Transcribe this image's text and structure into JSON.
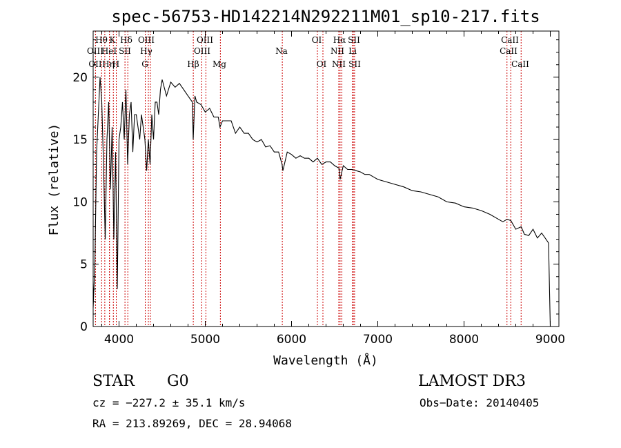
{
  "chart_data": {
    "type": "line",
    "title": "spec-56753-HD142214N292211M01_sp10-217.fits",
    "xlabel": "Wavelength (Å)",
    "ylabel": "Flux (relative)",
    "xlim": [
      3700,
      9100
    ],
    "ylim": [
      0,
      23.7
    ],
    "x_ticks": [
      4000,
      5000,
      6000,
      7000,
      8000,
      9000
    ],
    "x_tick_labels": [
      "4000",
      "5000",
      "6000",
      "7000",
      "8000",
      "9000"
    ],
    "y_ticks": [
      0,
      5,
      10,
      15,
      20
    ],
    "y_tick_labels": [
      "0",
      "5",
      "10",
      "15",
      "20"
    ],
    "grid": false,
    "series": [
      {
        "name": "spectrum",
        "x": [
          3700,
          3720,
          3740,
          3760,
          3780,
          3800,
          3820,
          3840,
          3860,
          3880,
          3900,
          3920,
          3940,
          3960,
          3980,
          4000,
          4020,
          4040,
          4060,
          4080,
          4100,
          4120,
          4140,
          4160,
          4180,
          4200,
          4220,
          4240,
          4260,
          4280,
          4300,
          4320,
          4340,
          4360,
          4380,
          4400,
          4420,
          4440,
          4460,
          4480,
          4500,
          4550,
          4600,
          4650,
          4700,
          4750,
          4800,
          4850,
          4860,
          4880,
          4900,
          4950,
          5000,
          5050,
          5100,
          5150,
          5170,
          5200,
          5250,
          5300,
          5350,
          5400,
          5450,
          5500,
          5550,
          5600,
          5650,
          5700,
          5750,
          5800,
          5850,
          5890,
          5900,
          5950,
          6000,
          6050,
          6100,
          6150,
          6200,
          6250,
          6300,
          6350,
          6400,
          6450,
          6500,
          6550,
          6563,
          6580,
          6600,
          6650,
          6700,
          6750,
          6800,
          6850,
          6900,
          6950,
          7000,
          7100,
          7200,
          7300,
          7400,
          7500,
          7600,
          7700,
          7800,
          7900,
          8000,
          8100,
          8200,
          8300,
          8400,
          8450,
          8498,
          8542,
          8600,
          8662,
          8700,
          8750,
          8800,
          8850,
          8900,
          8950,
          8980,
          9000
        ],
        "values": [
          1.5,
          5,
          14,
          17,
          20,
          18,
          13,
          7,
          15,
          18,
          11,
          16,
          7,
          14,
          3,
          15,
          16,
          18,
          15,
          19,
          13,
          17,
          18,
          14,
          17,
          17,
          16,
          15,
          17,
          16,
          15,
          12.5,
          15,
          13,
          17,
          15,
          18,
          18,
          17,
          19,
          19.8,
          18.5,
          19.6,
          19.2,
          19.5,
          19,
          18.5,
          18,
          15,
          18.5,
          18,
          17.8,
          17.2,
          17.5,
          16.8,
          16.8,
          16,
          16.5,
          16.5,
          16.5,
          15.5,
          16,
          15.5,
          15.5,
          15,
          14.8,
          15,
          14.4,
          14.5,
          14,
          14,
          13,
          12.5,
          14,
          13.8,
          13.5,
          13.7,
          13.5,
          13.5,
          13.2,
          13.5,
          13,
          13.2,
          13.2,
          12.9,
          12.7,
          11.8,
          12.3,
          12.9,
          12.6,
          12.6,
          12.5,
          12.4,
          12.2,
          12.2,
          12,
          11.8,
          11.6,
          11.4,
          11.2,
          10.9,
          10.8,
          10.6,
          10.4,
          10,
          9.9,
          9.6,
          9.5,
          9.3,
          9,
          8.6,
          8.4,
          8.6,
          8.5,
          7.8,
          8,
          7.4,
          7.3,
          7.8,
          7.1,
          7.5,
          7,
          6.7,
          0
        ]
      }
    ],
    "spectral_lines": [
      {
        "name": "OII",
        "wavelength": 3727
      },
      {
        "name": "Hθ",
        "wavelength": 3798
      },
      {
        "name": "OIII",
        "wavelength": 3835
      },
      {
        "name": "Hη",
        "wavelength": 3889
      },
      {
        "name": "HeI",
        "wavelength": 3889
      },
      {
        "name": "K",
        "wavelength": 3934
      },
      {
        "name": "H",
        "wavelength": 3968
      },
      {
        "name": "SII",
        "wavelength": 4069
      },
      {
        "name": "Hδ",
        "wavelength": 4102
      },
      {
        "name": "G",
        "wavelength": 4304
      },
      {
        "name": "Hγ",
        "wavelength": 4340
      },
      {
        "name": "OIII",
        "wavelength": 4363
      },
      {
        "name": "Hβ",
        "wavelength": 4861
      },
      {
        "name": "OIII",
        "wavelength": 4959
      },
      {
        "name": "OIII",
        "wavelength": 5007
      },
      {
        "name": "Mg",
        "wavelength": 5175
      },
      {
        "name": "Na",
        "wavelength": 5893
      },
      {
        "name": "OI",
        "wavelength": 6300
      },
      {
        "name": "OI",
        "wavelength": 6364
      },
      {
        "name": "NII",
        "wavelength": 6548
      },
      {
        "name": "Hα",
        "wavelength": 6563
      },
      {
        "name": "NII",
        "wavelength": 6583
      },
      {
        "name": "Li",
        "wavelength": 6708
      },
      {
        "name": "SII",
        "wavelength": 6716
      },
      {
        "name": "SII",
        "wavelength": 6731
      },
      {
        "name": "CaII",
        "wavelength": 8498
      },
      {
        "name": "CaII",
        "wavelength": 8542
      },
      {
        "name": "CaII",
        "wavelength": 8662
      }
    ],
    "line_label_rows": [
      [
        "Hθ",
        "K",
        "Hδ",
        "OIII",
        "OIII",
        "OI",
        "Hα",
        "SII",
        "CaII"
      ],
      [
        "OIII",
        "HeI",
        "SII",
        "Hγ",
        "OIII",
        "Na",
        "NII",
        "Li",
        "CaII"
      ],
      [
        "OII",
        "Hη",
        "H",
        "G",
        "Hβ",
        "Mg",
        "OI",
        "NII",
        "SII",
        "CaII"
      ]
    ]
  },
  "info": {
    "object_class": "STAR",
    "subclass": "G0",
    "survey": "LAMOST DR3",
    "redshift_text": "cz = −227.2 ± 35.1 km/s",
    "obs_date_text": "Obs−Date: 20140405",
    "coords_text": "RA = 213.89269, DEC =  28.94068"
  },
  "colors": {
    "spectrum": "#000000",
    "line_markers": "#cc0000",
    "axes": "#000000",
    "background": "#ffffff"
  }
}
